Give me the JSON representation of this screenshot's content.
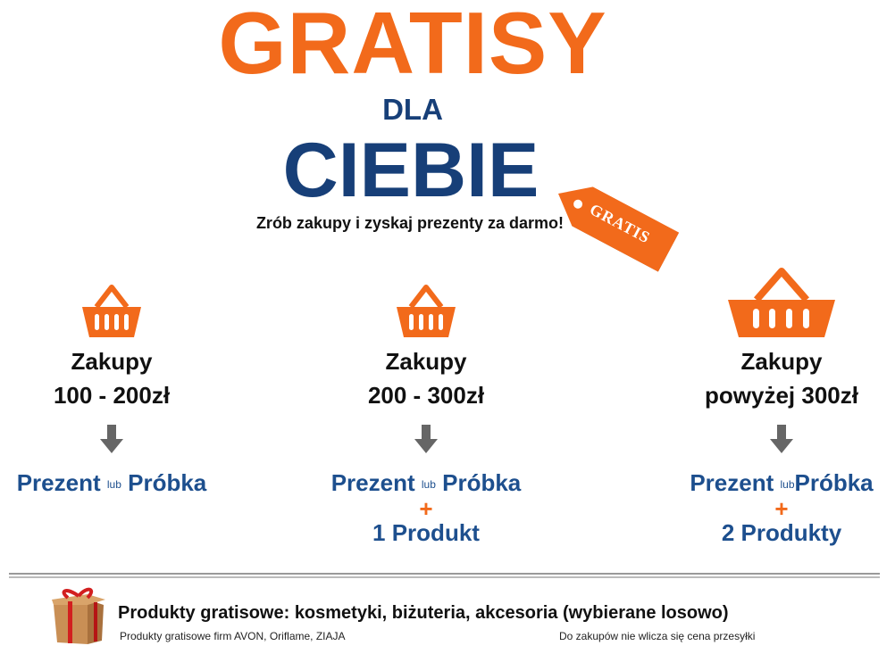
{
  "header": {
    "title": "GRATISY",
    "dla": "DLA",
    "ciebie": "CIEBIE",
    "tagline": "Zrób zakupy i zyskaj prezenty za darmo!",
    "tag_label": "GRATIS"
  },
  "colors": {
    "orange": "#f26a1b",
    "navy": "#173f78",
    "blue": "#1d4f8e",
    "arrow": "#666666"
  },
  "tiers": [
    {
      "icon": "basket-icon",
      "line1": "Zakupy",
      "line2": "100 - 200zł",
      "reward_a": "Prezent",
      "reward_or": "lub",
      "reward_b": "Próbka"
    },
    {
      "icon": "basket-icon",
      "line1": "Zakupy",
      "line2": "200 - 300zł",
      "reward_a": "Prezent",
      "reward_or": "lub",
      "reward_b": "Próbka",
      "plus": "+",
      "extra": "1 Produkt"
    },
    {
      "icon": "basket-icon",
      "line1": "Zakupy",
      "line2": "powyżej 300zł",
      "reward_a": "Prezent",
      "reward_or": "lub",
      "reward_b": "Próbka",
      "plus": "+",
      "extra": "2 Produkty"
    }
  ],
  "footer": {
    "icon": "gift-box-icon",
    "main": "Produkty gratisowe: kosmetyki, biżuteria, akcesoria (wybierane losowo)",
    "brands": "Produkty gratisowe firm AVON, Oriflame, ZIAJA",
    "shipping": "Do zakupów nie wlicza się cena przesyłki"
  }
}
